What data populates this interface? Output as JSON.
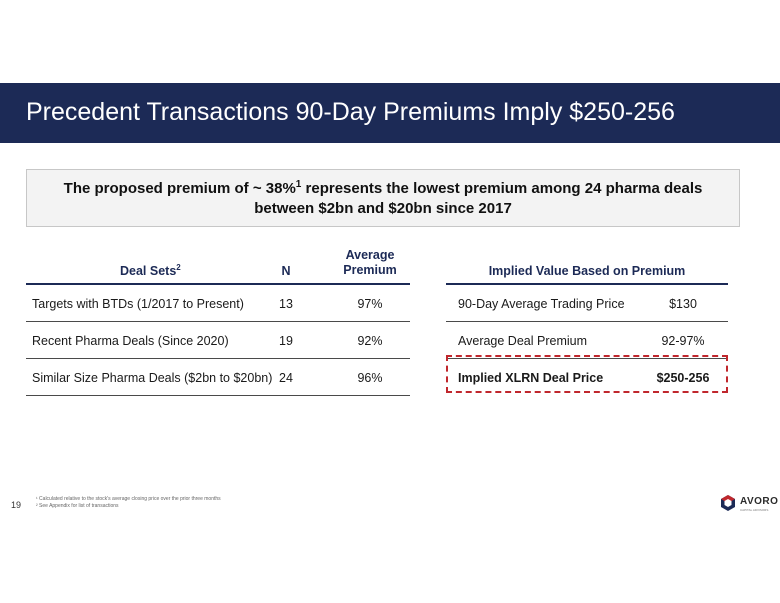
{
  "slide": {
    "title": "Precedent Transactions 90-Day Premiums Imply $250-256",
    "callout": {
      "line1_before_sup": "The proposed premium of ~ 38%",
      "line1_sup": "1",
      "line1_after_sup": " represents the lowest premium among 24 pharma deals",
      "line2": "between $2bn and $20bn since 2017"
    },
    "page_number": "19",
    "footnotes": [
      "¹ Calculated relative to the stock's average closing price over the prior three months",
      "² See Appendix for list of transactions"
    ],
    "logo": {
      "word": "AVORO",
      "sub": "CAPITAL ADVISORS"
    }
  },
  "deal_table": {
    "headers": {
      "deal_sets": "Deal Sets",
      "deal_sets_sup": "2",
      "n": "N",
      "premium_line1": "Average",
      "premium_line2": "Premium"
    },
    "rows": [
      {
        "name": "Targets with BTDs (1/2017 to Present)",
        "n": "13",
        "premium": "97%"
      },
      {
        "name": "Recent Pharma Deals (Since 2020)",
        "n": "19",
        "premium": "92%"
      },
      {
        "name": "Similar Size Pharma Deals ($2bn to $20bn)",
        "n": "24",
        "premium": "96%"
      }
    ]
  },
  "implied_table": {
    "header": "Implied Value Based on Premium",
    "rows": [
      {
        "label": "90-Day Average Trading Price",
        "value": "$130"
      },
      {
        "label": "Average Deal Premium",
        "value": "92-97%"
      }
    ],
    "highlight": {
      "label": "Implied XLRN Deal Price",
      "value": "$250-256",
      "border_color": "#c0272d"
    }
  },
  "colors": {
    "navy": "#1c2a56",
    "highlight_red": "#c0272d"
  }
}
